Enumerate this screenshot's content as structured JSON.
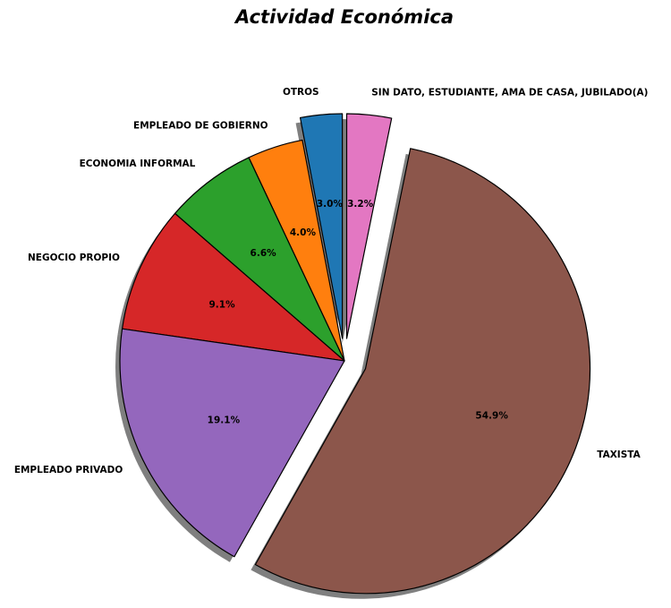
{
  "chart_data": {
    "type": "pie",
    "title": "Actividad Económica",
    "categories": [
      "OTROS",
      "EMPLEADO DE GOBIERNO",
      "ECONOMIA INFORMAL",
      "NEGOCIO PROPIO",
      "EMPLEADO PRIVADO",
      "TAXISTA",
      "SIN DATO, ESTUDIANTE, AMA DE CASA, JUBILADO(A)"
    ],
    "values": [
      3.0,
      4.0,
      6.6,
      9.1,
      19.1,
      54.9,
      3.2
    ],
    "percent_labels": [
      "3.0%",
      "4.0%",
      "6.6%",
      "9.1%",
      "19.1%",
      "54.9%",
      "3.2%"
    ],
    "exploded": [
      true,
      false,
      false,
      false,
      false,
      true,
      true
    ],
    "colors": [
      "#1f77b4",
      "#ff7f0e",
      "#2ca02c",
      "#d62728",
      "#9467bd",
      "#8c564b",
      "#e377c2"
    ],
    "start_angle_deg": 90,
    "direction": "counterclockwise",
    "shadow": true
  }
}
